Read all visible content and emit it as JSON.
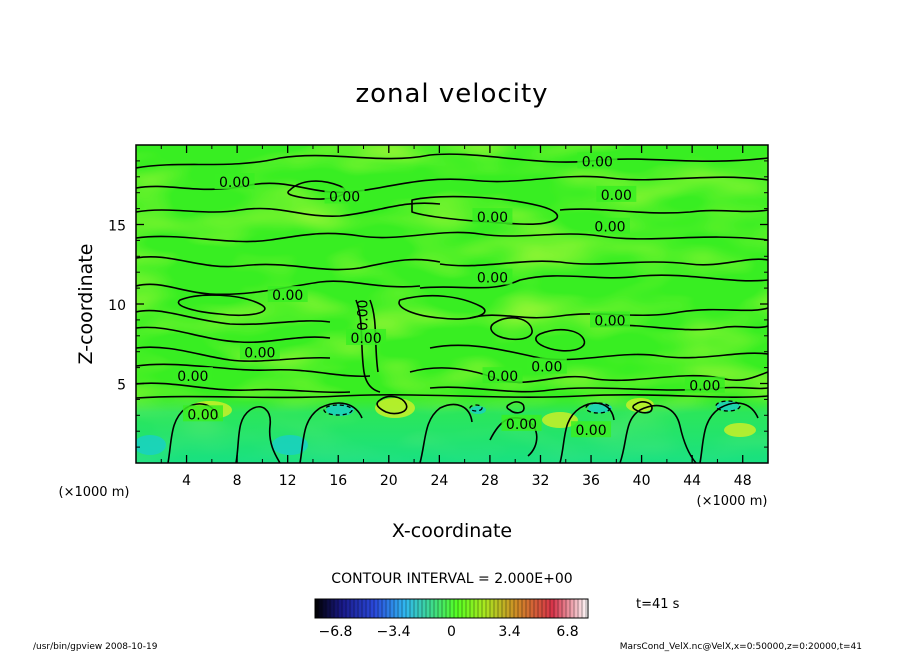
{
  "chart_data": {
    "type": "heatmap",
    "title": "zonal velocity",
    "xlabel": "X-coordinate",
    "ylabel": "Z-coordinate",
    "x_unit": "(×1000 m)",
    "y_unit": "(×1000 m)",
    "xlim": [
      0,
      50
    ],
    "ylim": [
      0,
      20
    ],
    "x_ticks": [
      4,
      8,
      12,
      16,
      20,
      24,
      28,
      32,
      36,
      40,
      44,
      48
    ],
    "y_ticks": [
      5,
      10,
      15
    ],
    "contour_label": "0.00",
    "contour_interval_text": "CONTOUR INTERVAL = 2.000E+00",
    "colorbar": {
      "min": -8,
      "max": 8,
      "ticks": [
        -6.8,
        -3.4,
        0,
        3.4,
        6.8
      ],
      "tick_labels": [
        "−6.8",
        "−3.4",
        "0",
        "3.4",
        "6.8"
      ]
    },
    "time_label": "t=41 s",
    "contour_labels": [
      {
        "x": 7.8,
        "z": 17.6
      },
      {
        "x": 16.5,
        "z": 16.7
      },
      {
        "x": 36.5,
        "z": 18.9
      },
      {
        "x": 38.0,
        "z": 16.8
      },
      {
        "x": 28.2,
        "z": 15.4
      },
      {
        "x": 37.5,
        "z": 14.8
      },
      {
        "x": 28.2,
        "z": 11.6
      },
      {
        "x": 12.0,
        "z": 10.5
      },
      {
        "x": 37.5,
        "z": 8.9
      },
      {
        "x": 18.2,
        "z": 7.8
      },
      {
        "x": 9.8,
        "z": 6.9
      },
      {
        "x": 32.5,
        "z": 6.0
      },
      {
        "x": 4.5,
        "z": 5.4
      },
      {
        "x": 29.0,
        "z": 5.4
      },
      {
        "x": 45.0,
        "z": 4.8
      },
      {
        "x": 5.3,
        "z": 3.0
      },
      {
        "x": 30.5,
        "z": 2.4
      },
      {
        "x": 36.0,
        "z": 2.0
      }
    ]
  },
  "footer": {
    "left": "/usr/bin/gpview   2008-10-19",
    "right": "MarsCond_VelX.nc@VelX,x=0:50000,z=0:20000,t=41"
  }
}
